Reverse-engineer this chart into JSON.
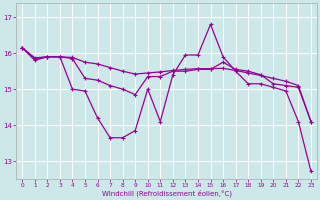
{
  "xlabel": "Windchill (Refroidissement éolien,°C)",
  "xlim": [
    -0.5,
    23.5
  ],
  "ylim": [
    12.5,
    17.4
  ],
  "yticks": [
    13,
    14,
    15,
    16,
    17
  ],
  "xticks": [
    0,
    1,
    2,
    3,
    4,
    5,
    6,
    7,
    8,
    9,
    10,
    11,
    12,
    13,
    14,
    15,
    16,
    17,
    18,
    19,
    20,
    21,
    22,
    23
  ],
  "line_color": "#990099",
  "bg_color": "#cce8e8",
  "grid_color": "#ffffff",
  "series_spiky": [
    16.15,
    15.8,
    15.9,
    15.9,
    15.0,
    14.95,
    14.2,
    13.65,
    13.65,
    13.85,
    15.0,
    14.1,
    15.4,
    15.95,
    15.95,
    16.8,
    15.9,
    15.5,
    15.15,
    15.15,
    15.05,
    14.95,
    14.1,
    12.72
  ],
  "series_mid": [
    16.15,
    15.85,
    15.9,
    15.9,
    15.85,
    15.3,
    15.25,
    15.1,
    15.0,
    14.85,
    15.35,
    15.35,
    15.5,
    15.5,
    15.55,
    15.55,
    15.75,
    15.55,
    15.5,
    15.4,
    15.15,
    15.1,
    15.05,
    14.1
  ],
  "series_flat": [
    16.15,
    15.87,
    15.9,
    15.9,
    15.88,
    15.75,
    15.7,
    15.6,
    15.5,
    15.42,
    15.45,
    15.48,
    15.52,
    15.55,
    15.57,
    15.57,
    15.58,
    15.52,
    15.45,
    15.38,
    15.3,
    15.22,
    15.1,
    14.1
  ]
}
